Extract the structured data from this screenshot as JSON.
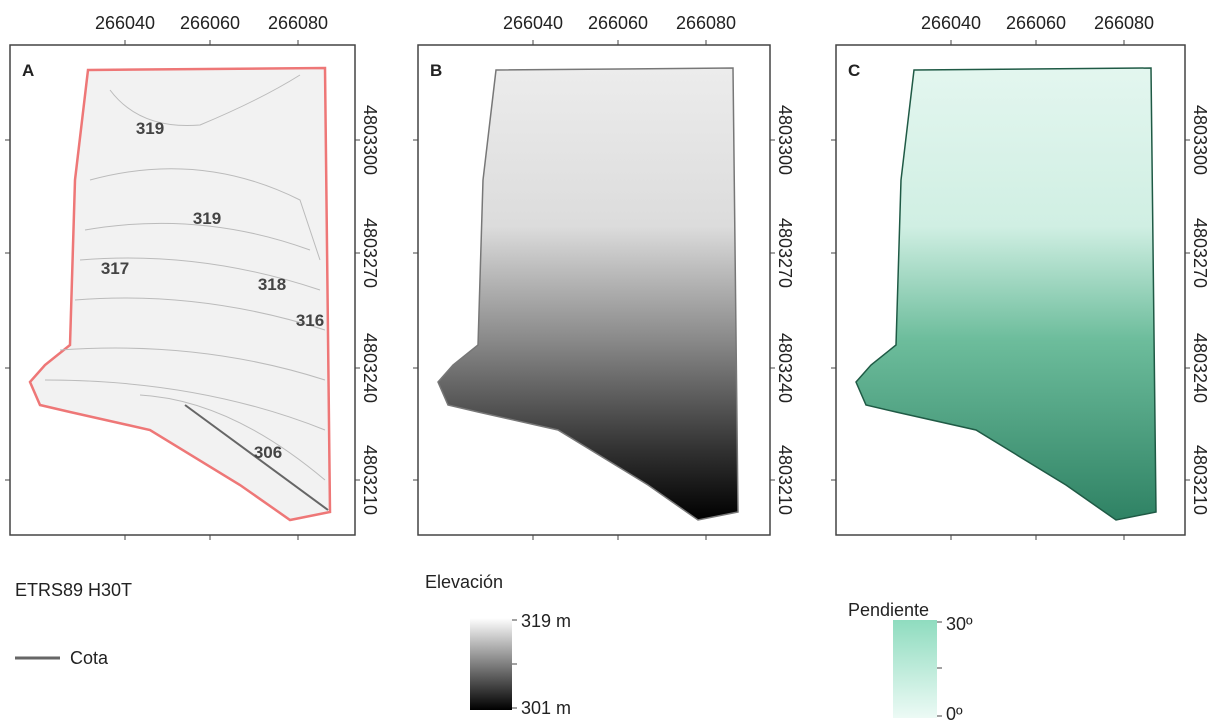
{
  "panels": [
    {
      "letter": "A",
      "x_ticks": [
        "266040",
        "266060",
        "266080"
      ],
      "y_ticks": [
        "4803300",
        "4803270",
        "4803240",
        "4803210"
      ],
      "contour_labels": [
        "319",
        "319",
        "317",
        "318",
        "316",
        "306"
      ]
    },
    {
      "letter": "B",
      "x_ticks": [
        "266040",
        "266060",
        "266080"
      ],
      "y_ticks": [
        "4803300",
        "4803270",
        "4803240",
        "4803210"
      ]
    },
    {
      "letter": "C",
      "x_ticks": [
        "266040",
        "266060",
        "266080"
      ],
      "y_ticks": [
        "4803300",
        "4803270",
        "4803240",
        "4803210"
      ]
    }
  ],
  "legend": {
    "crs": "ETRS89 H30T",
    "contour": "Cota",
    "elevation": {
      "title": "Elevación",
      "max": "319 m",
      "min": "301 m"
    },
    "slope": {
      "title": "Pendiente",
      "max": "30º",
      "min": "0º"
    }
  }
}
